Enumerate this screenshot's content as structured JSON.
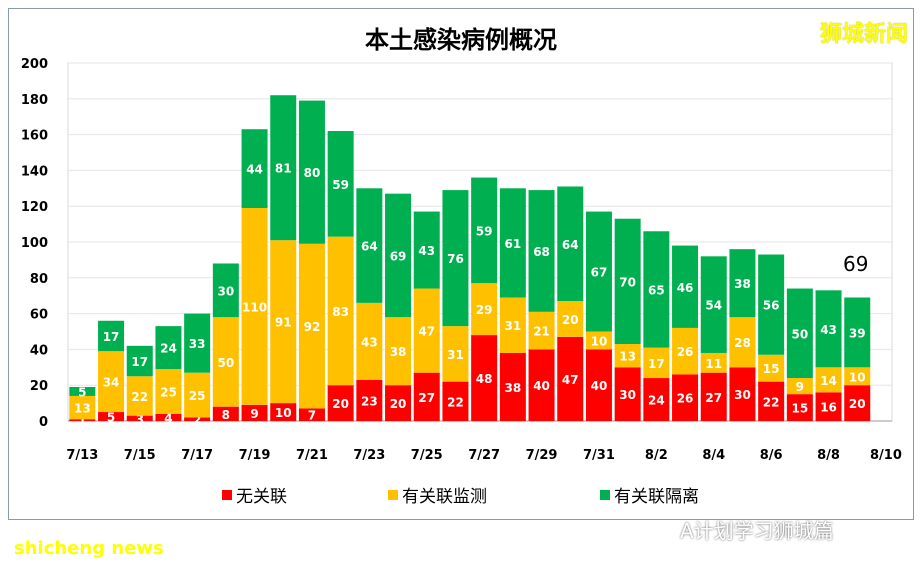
{
  "chart_data": {
    "type": "bar",
    "stacked": true,
    "title": "本土感染病例概况",
    "categories": [
      "7/13",
      "7/14",
      "7/15",
      "7/16",
      "7/17",
      "7/18",
      "7/19",
      "7/20",
      "7/21",
      "7/22",
      "7/23",
      "7/24",
      "7/25",
      "7/26",
      "7/27",
      "7/28",
      "7/29",
      "7/30",
      "7/31",
      "8/1",
      "8/2",
      "8/3",
      "8/4",
      "8/5",
      "8/6",
      "8/7",
      "8/8",
      "8/9"
    ],
    "xticks": [
      "7/13",
      "7/15",
      "7/17",
      "7/19",
      "7/21",
      "7/23",
      "7/25",
      "7/27",
      "7/29",
      "7/31",
      "8/2",
      "8/4",
      "8/6",
      "8/8",
      "8/10"
    ],
    "yticks": [
      0,
      20,
      40,
      60,
      80,
      100,
      120,
      140,
      160,
      180,
      200
    ],
    "ylim": [
      0,
      200
    ],
    "grid": true,
    "legend_position": "bottom",
    "series": [
      {
        "name": "无关联",
        "color": "#ff0000",
        "values": [
          1,
          5,
          3,
          4,
          2,
          8,
          9,
          10,
          7,
          20,
          23,
          20,
          27,
          22,
          48,
          38,
          40,
          47,
          40,
          30,
          24,
          26,
          27,
          30,
          22,
          15,
          16,
          20
        ]
      },
      {
        "name": "有关联监测",
        "color": "#ffc000",
        "values": [
          13,
          34,
          22,
          25,
          25,
          50,
          110,
          91,
          92,
          83,
          43,
          38,
          47,
          31,
          29,
          31,
          21,
          20,
          10,
          13,
          17,
          26,
          11,
          28,
          15,
          9,
          14,
          10
        ]
      },
      {
        "name": "有关联隔离",
        "color": "#00b050",
        "values": [
          5,
          17,
          17,
          24,
          33,
          30,
          44,
          81,
          80,
          59,
          64,
          69,
          43,
          76,
          59,
          61,
          68,
          64,
          67,
          70,
          65,
          46,
          54,
          38,
          56,
          50,
          43,
          39
        ]
      }
    ],
    "annotation": "69"
  },
  "watermark": "狮城新闻",
  "footer": "shicheng news",
  "wechat": "A计划学习狮城篇"
}
